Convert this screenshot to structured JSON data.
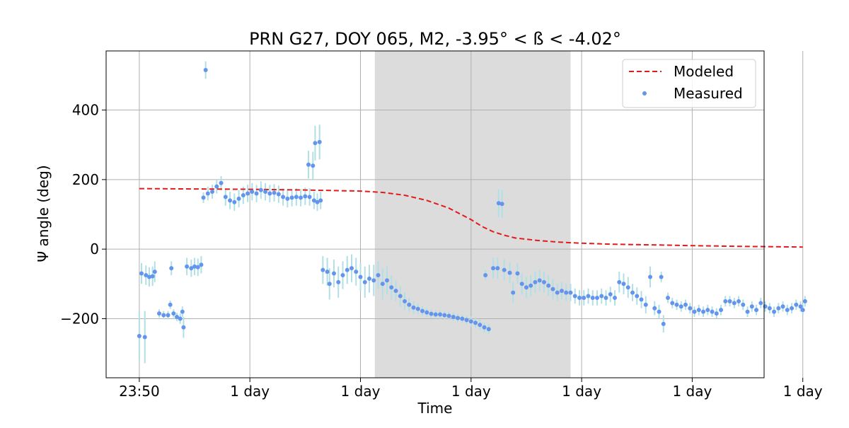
{
  "chart_data": {
    "type": "scatter",
    "title": "PRN G27, DOY 065, M2, -3.95° < ß < -4.02°",
    "xlabel": "Time",
    "ylabel": "Ψ angle (deg)",
    "x_unit": "hours",
    "xlim": [
      -0.3,
      5.65
    ],
    "ylim": [
      -370,
      570
    ],
    "x_ticks": [
      0,
      1,
      2,
      3,
      4,
      5,
      6
    ],
    "x_tick_labels": [
      "23:50",
      "1 day",
      "1 day",
      "1 day",
      "1 day",
      "1 day",
      "1 day"
    ],
    "y_ticks": [
      -200,
      0,
      200,
      400
    ],
    "y_tick_labels": [
      "−200",
      "0",
      "200",
      "400"
    ],
    "grid": true,
    "legend_position": "top-right",
    "shaded_region": {
      "x0": 2.13,
      "x1": 3.9,
      "color": "#dcdcdc"
    },
    "colors": {
      "modeled": "#e31a1c",
      "measured": "#6495ed",
      "error_bars": "#b0e0e6"
    },
    "series": [
      {
        "name": "Modeled",
        "style": "dashed-line",
        "x": [
          0,
          0.5,
          1,
          1.5,
          2,
          2.2,
          2.4,
          2.6,
          2.8,
          3.0,
          3.1,
          3.2,
          3.3,
          3.4,
          3.6,
          3.8,
          4.0,
          4.3,
          4.7,
          5.0,
          5.4,
          6.0
        ],
        "y": [
          174,
          173,
          172,
          170,
          167,
          163,
          155,
          140,
          118,
          85,
          65,
          50,
          40,
          32,
          25,
          20,
          17,
          14,
          12,
          10,
          8,
          6
        ]
      },
      {
        "name": "Measured",
        "style": "markers-with-error-bars",
        "points": [
          [
            0.0,
            -250,
            70
          ],
          [
            0.05,
            -253,
            75
          ],
          [
            0.02,
            -70,
            30
          ],
          [
            0.06,
            -75,
            28
          ],
          [
            0.09,
            -80,
            28
          ],
          [
            0.12,
            -78,
            28
          ],
          [
            0.14,
            -65,
            30
          ],
          [
            0.18,
            -185,
            12
          ],
          [
            0.22,
            -190,
            12
          ],
          [
            0.26,
            -190,
            12
          ],
          [
            0.28,
            -160,
            12
          ],
          [
            0.31,
            -185,
            12
          ],
          [
            0.34,
            -195,
            12
          ],
          [
            0.37,
            -200,
            15
          ],
          [
            0.39,
            -180,
            15
          ],
          [
            0.4,
            -225,
            30
          ],
          [
            0.29,
            -55,
            20
          ],
          [
            0.43,
            -50,
            25
          ],
          [
            0.47,
            -55,
            25
          ],
          [
            0.5,
            -50,
            25
          ],
          [
            0.53,
            -52,
            25
          ],
          [
            0.56,
            -45,
            25
          ],
          [
            0.6,
            515,
            25
          ],
          [
            0.58,
            148,
            15
          ],
          [
            0.62,
            160,
            20
          ],
          [
            0.66,
            165,
            20
          ],
          [
            0.7,
            180,
            20
          ],
          [
            0.74,
            190,
            20
          ],
          [
            0.78,
            150,
            25
          ],
          [
            0.82,
            140,
            25
          ],
          [
            0.86,
            135,
            25
          ],
          [
            0.9,
            145,
            25
          ],
          [
            0.94,
            155,
            25
          ],
          [
            0.98,
            160,
            25
          ],
          [
            1.02,
            165,
            25
          ],
          [
            1.06,
            160,
            25
          ],
          [
            1.1,
            170,
            25
          ],
          [
            1.14,
            165,
            25
          ],
          [
            1.18,
            160,
            25
          ],
          [
            1.22,
            162,
            25
          ],
          [
            1.26,
            158,
            25
          ],
          [
            1.3,
            150,
            25
          ],
          [
            1.34,
            145,
            25
          ],
          [
            1.38,
            148,
            25
          ],
          [
            1.42,
            150,
            25
          ],
          [
            1.46,
            148,
            25
          ],
          [
            1.5,
            152,
            25
          ],
          [
            1.54,
            150,
            25
          ],
          [
            1.58,
            140,
            25
          ],
          [
            1.53,
            243,
            40
          ],
          [
            1.57,
            240,
            40
          ],
          [
            1.59,
            305,
            50
          ],
          [
            1.63,
            308,
            50
          ],
          [
            1.61,
            135,
            25
          ],
          [
            1.64,
            140,
            25
          ],
          [
            1.66,
            -60,
            40
          ],
          [
            1.7,
            -65,
            40
          ],
          [
            1.72,
            -100,
            45
          ],
          [
            1.76,
            -70,
            40
          ],
          [
            1.8,
            -95,
            45
          ],
          [
            1.84,
            -75,
            40
          ],
          [
            1.88,
            -60,
            40
          ],
          [
            1.92,
            -55,
            40
          ],
          [
            1.96,
            -65,
            40
          ],
          [
            2.0,
            -80,
            40
          ],
          [
            2.04,
            -95,
            45
          ],
          [
            2.08,
            -85,
            40
          ],
          [
            2.12,
            -90,
            45
          ],
          [
            2.16,
            -75,
            40
          ],
          [
            2.2,
            -100,
            45
          ],
          [
            2.24,
            -90,
            40
          ],
          [
            2.28,
            -110,
            35
          ],
          [
            2.32,
            -120,
            30
          ],
          [
            2.36,
            -135,
            30
          ],
          [
            2.4,
            -150,
            25
          ],
          [
            2.44,
            -160,
            20
          ],
          [
            2.48,
            -168,
            18
          ],
          [
            2.52,
            -172,
            15
          ],
          [
            2.56,
            -178,
            14
          ],
          [
            2.6,
            -182,
            12
          ],
          [
            2.64,
            -186,
            12
          ],
          [
            2.68,
            -188,
            12
          ],
          [
            2.72,
            -188,
            12
          ],
          [
            2.76,
            -190,
            12
          ],
          [
            2.8,
            -192,
            12
          ],
          [
            2.84,
            -195,
            12
          ],
          [
            2.88,
            -198,
            12
          ],
          [
            2.92,
            -200,
            12
          ],
          [
            2.96,
            -204,
            12
          ],
          [
            3.0,
            -208,
            15
          ],
          [
            3.04,
            -212,
            15
          ],
          [
            3.08,
            -218,
            15
          ],
          [
            3.12,
            -225,
            15
          ],
          [
            3.16,
            -230,
            15
          ],
          [
            3.13,
            -75,
            15
          ],
          [
            3.25,
            132,
            40
          ],
          [
            3.28,
            130,
            40
          ],
          [
            3.2,
            -55,
            30
          ],
          [
            3.24,
            -55,
            30
          ],
          [
            3.3,
            -60,
            30
          ],
          [
            3.35,
            -68,
            30
          ],
          [
            3.38,
            -125,
            30
          ],
          [
            3.42,
            -70,
            30
          ],
          [
            3.46,
            -100,
            30
          ],
          [
            3.5,
            -110,
            30
          ],
          [
            3.54,
            -105,
            30
          ],
          [
            3.58,
            -95,
            30
          ],
          [
            3.62,
            -90,
            30
          ],
          [
            3.66,
            -95,
            30
          ],
          [
            3.7,
            -105,
            30
          ],
          [
            3.74,
            -115,
            30
          ],
          [
            3.78,
            -125,
            25
          ],
          [
            3.82,
            -120,
            25
          ],
          [
            3.86,
            -125,
            25
          ],
          [
            3.9,
            -125,
            25
          ],
          [
            3.94,
            -135,
            22
          ],
          [
            3.98,
            -140,
            22
          ],
          [
            4.02,
            -140,
            22
          ],
          [
            4.06,
            -135,
            22
          ],
          [
            4.1,
            -140,
            22
          ],
          [
            4.14,
            -140,
            22
          ],
          [
            4.18,
            -135,
            22
          ],
          [
            4.22,
            -140,
            22
          ],
          [
            4.26,
            -130,
            22
          ],
          [
            4.3,
            -140,
            22
          ],
          [
            4.34,
            -95,
            30
          ],
          [
            4.38,
            -100,
            30
          ],
          [
            4.42,
            -110,
            30
          ],
          [
            4.46,
            -125,
            25
          ],
          [
            4.5,
            -135,
            25
          ],
          [
            4.54,
            -145,
            25
          ],
          [
            4.58,
            -160,
            25
          ],
          [
            4.62,
            -80,
            30
          ],
          [
            4.66,
            -170,
            20
          ],
          [
            4.7,
            -180,
            20
          ],
          [
            4.72,
            -80,
            15
          ],
          [
            4.74,
            -215,
            25
          ],
          [
            4.78,
            -140,
            15
          ],
          [
            4.82,
            -155,
            15
          ],
          [
            4.86,
            -160,
            15
          ],
          [
            4.9,
            -165,
            15
          ],
          [
            4.94,
            -160,
            15
          ],
          [
            4.98,
            -170,
            15
          ],
          [
            5.02,
            -180,
            15
          ],
          [
            5.06,
            -175,
            15
          ],
          [
            5.1,
            -180,
            15
          ],
          [
            5.14,
            -175,
            15
          ],
          [
            5.18,
            -180,
            15
          ],
          [
            5.22,
            -185,
            15
          ],
          [
            5.26,
            -175,
            15
          ],
          [
            5.3,
            -150,
            15
          ],
          [
            5.34,
            -150,
            15
          ],
          [
            5.38,
            -155,
            15
          ],
          [
            5.42,
            -150,
            15
          ],
          [
            5.46,
            -160,
            15
          ],
          [
            5.5,
            -180,
            15
          ],
          [
            5.54,
            -165,
            15
          ],
          [
            5.58,
            -175,
            15
          ],
          [
            5.62,
            -155,
            15
          ],
          [
            5.66,
            -165,
            15
          ],
          [
            5.7,
            -170,
            15
          ],
          [
            5.74,
            -180,
            15
          ],
          [
            5.78,
            -170,
            15
          ],
          [
            5.82,
            -165,
            15
          ],
          [
            5.86,
            -175,
            15
          ],
          [
            5.9,
            -170,
            15
          ],
          [
            5.94,
            -160,
            15
          ],
          [
            5.98,
            -165,
            15
          ],
          [
            6.0,
            -175,
            15
          ],
          [
            6.02,
            -150,
            15
          ]
        ]
      }
    ]
  }
}
